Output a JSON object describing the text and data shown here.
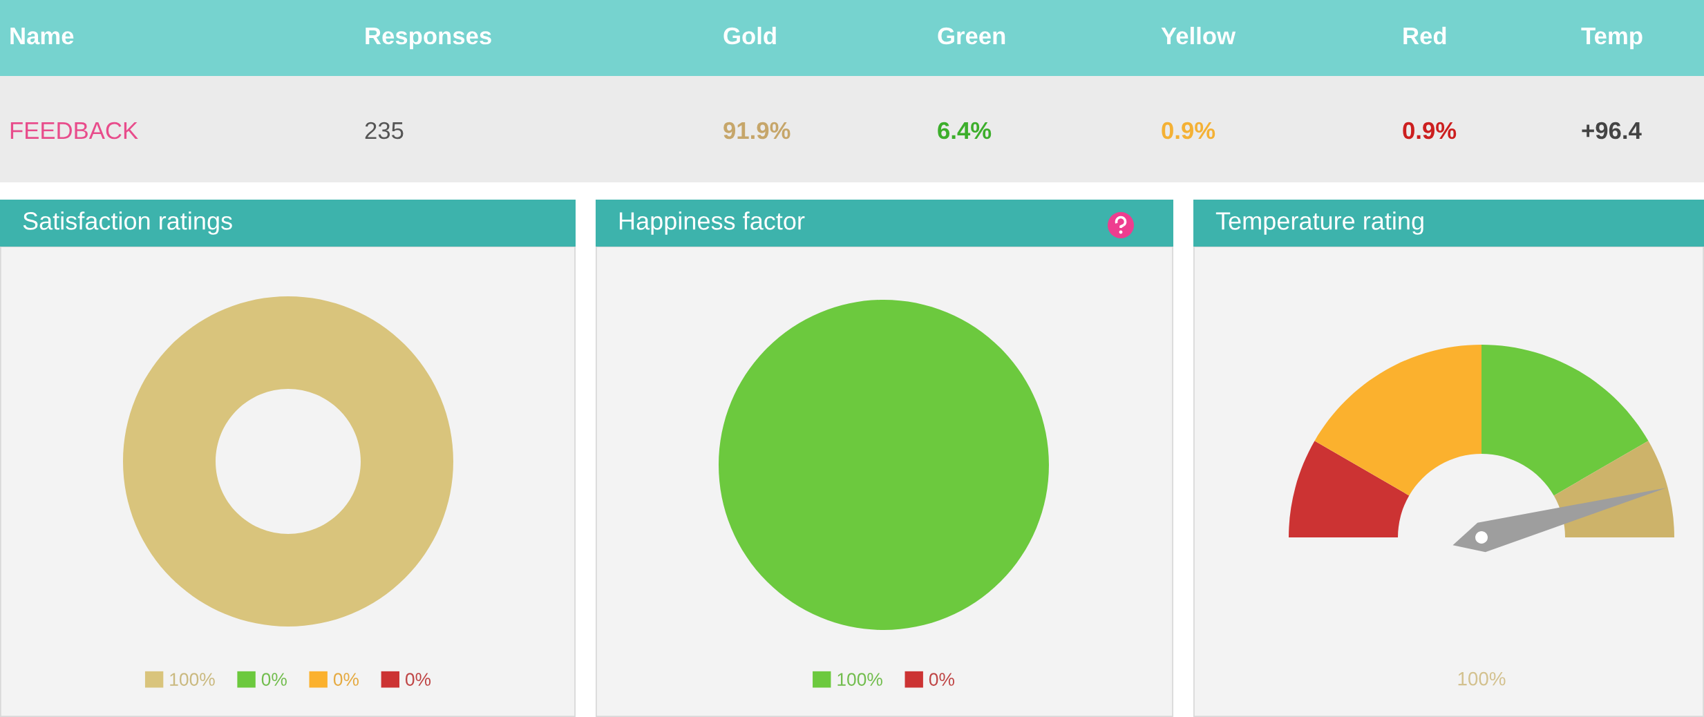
{
  "chart_data": [
    {
      "type": "other",
      "categories": [
        "Name",
        "Responses",
        "Gold",
        "Green",
        "Yellow",
        "Red",
        "Temp"
      ],
      "value_labels": [
        "FEEDBACK",
        "235",
        "91.9%",
        "6.4%",
        "0.9%",
        "0.9%",
        "+96.4"
      ]
    },
    {
      "type": "donut",
      "title": "Satisfaction ratings",
      "categories": [
        "100%",
        "0%",
        "0%",
        "0%"
      ],
      "values": [
        100,
        0,
        0,
        0
      ],
      "colors": [
        "#d9c47c",
        "#6cc93e",
        "#fbb12e",
        "#cc3333"
      ],
      "legend": "bottom"
    },
    {
      "type": "pie",
      "title": "Happiness factor",
      "categories": [
        "100%",
        "0%"
      ],
      "values": [
        100,
        0
      ],
      "colors": [
        "#6cc93e",
        "#cc3333"
      ],
      "legend": "bottom"
    },
    {
      "type": "donut",
      "title": "Temperature rating",
      "categories": [
        null,
        null,
        null,
        null
      ],
      "values": [
        16.7,
        33.3,
        33.3,
        16.7
      ],
      "colors": [
        "#cc3333",
        "#fbb12e",
        "#6cc93e",
        "#cdb36a"
      ],
      "needle": null,
      "annotations": [
        "100%"
      ]
    }
  ]
}
